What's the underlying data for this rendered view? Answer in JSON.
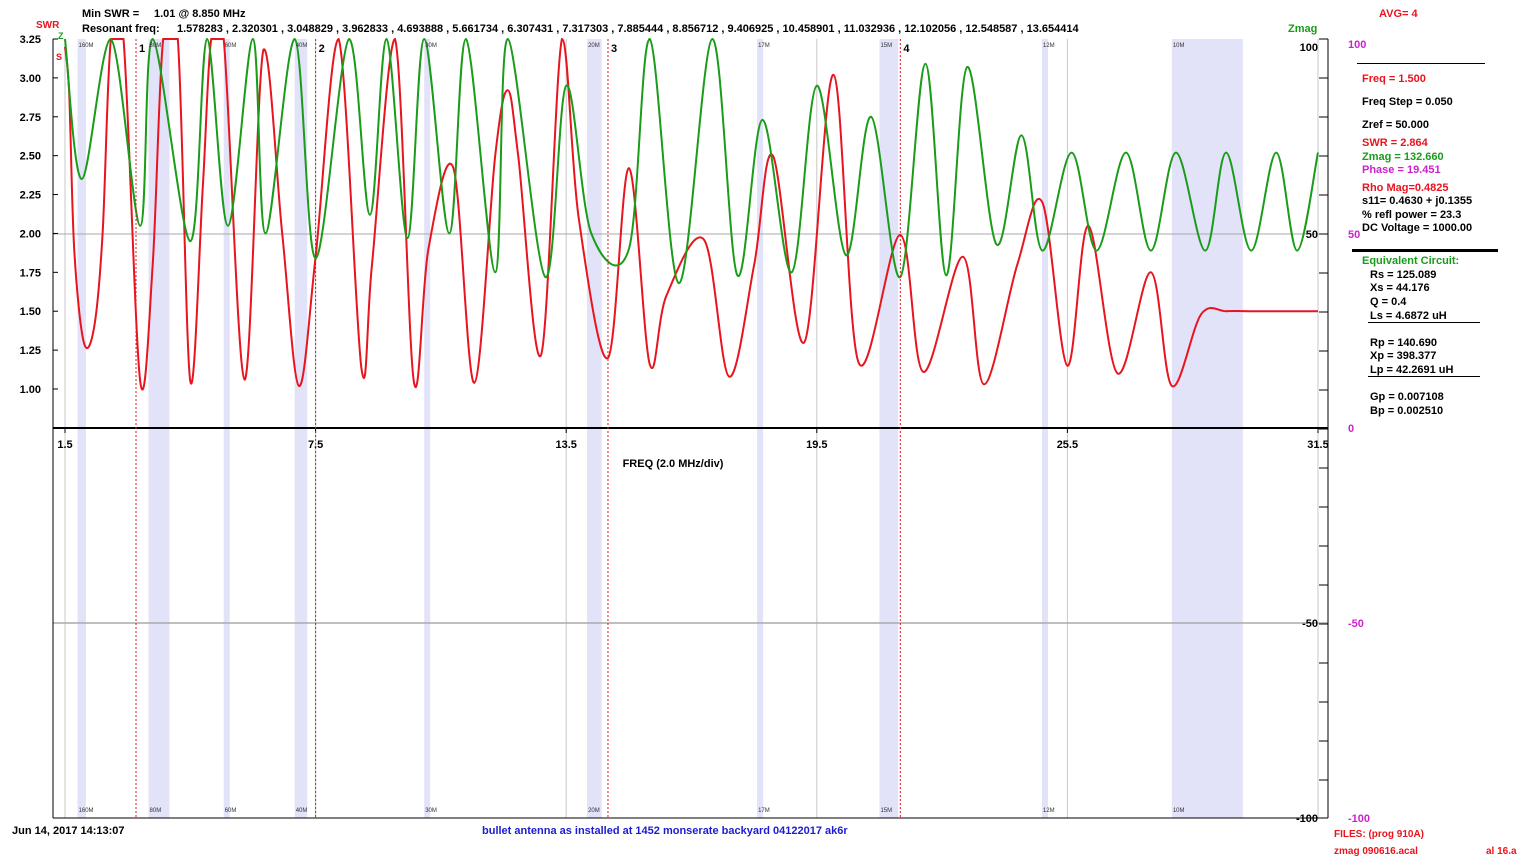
{
  "header": {
    "min_swr_label": "Min SWR =",
    "min_swr_value": "1.01 @  8.850 MHz",
    "resonant_label": "Resonant freq:",
    "resonant_values": "1.578283 , 2.320301 , 3.048829 , 3.962833 , 4.693888 , 5.661734 , 6.307431 , 7.317303 , 7.885444 , 8.856712 , 9.406925 , 10.458901 , 11.032936 , 12.102056 , 12.548587 , 13.654414",
    "avg": "AVG=  4",
    "swr_label": "SWR",
    "z_label": "Z",
    "s_label": "S",
    "zmag_label": "Zmag"
  },
  "panel": {
    "freq": "Freq = 1.500",
    "freq_step": "Freq Step = 0.050",
    "zref": "Zref =   50.000",
    "swr": "SWR =   2.864",
    "zmag": "Zmag =  132.660",
    "phase": "Phase =   19.451",
    "rho": "Rho Mag=0.4825",
    "s11": "s11= 0.4630 + j0.1355",
    "refl": "% refl power = 23.3",
    "dcv": "DC Voltage =  1000.00",
    "eq_title": "Equivalent Circuit:",
    "rs": "Rs =  125.089",
    "xs": "Xs =   44.176",
    "q": "Q =  0.4",
    "ls": "Ls =    4.6872 uH",
    "rp": "Rp =  140.690",
    "xp": "Xp =  398.377",
    "lp": "Lp =   42.2691  uH",
    "gp": "Gp =  0.007108",
    "bp": "Bp =  0.002510"
  },
  "footer": {
    "date": "Jun 14, 2017  14:13:07",
    "description": "bullet antenna as installed at 1452 monserate backyard 04122017 ak6r",
    "files": "FILES:  (prog 910A)",
    "file1": "zmag 090616.acal",
    "file2": "al 16.a"
  },
  "colors": {
    "swr": "#e8141e",
    "zmag": "#1a9c1a",
    "phase": "#cc22cc",
    "band": "#e2e2f8",
    "grid": "#c8c8c8"
  },
  "chart_data": {
    "type": "line",
    "xlabel": "FREQ (2.0 MHz/div)",
    "x_ticks": [
      "1.5",
      "7.5",
      "13.5",
      "19.5",
      "25.5",
      "31.5"
    ],
    "xlim": [
      1.5,
      31.5
    ],
    "swr_ticks": [
      "3.25",
      "3.00",
      "2.75",
      "2.50",
      "2.25",
      "2.00",
      "1.75",
      "1.50",
      "1.25",
      "1.00"
    ],
    "swr_ylim": [
      1.0,
      3.25
    ],
    "zmag_ticks": [
      "100",
      "50"
    ],
    "zmag_neg_ticks": [
      "-50",
      "-100"
    ],
    "phase_ticks": [
      "100",
      "50",
      "0",
      "-50",
      "-100"
    ],
    "markers": [
      {
        "label": "1",
        "freq": 3.2
      },
      {
        "label": "2",
        "freq": 7.5
      },
      {
        "label": "3",
        "freq": 14.5
      },
      {
        "label": "4",
        "freq": 21.5
      }
    ],
    "bands": [
      {
        "label": "160M",
        "from": 1.8,
        "to": 2.0
      },
      {
        "label": "80M",
        "from": 3.5,
        "to": 4.0
      },
      {
        "label": "60M",
        "from": 5.3,
        "to": 5.4
      },
      {
        "label": "40M",
        "from": 7.0,
        "to": 7.3
      },
      {
        "label": "30M",
        "from": 10.1,
        "to": 10.15
      },
      {
        "label": "20M",
        "from": 14.0,
        "to": 14.35
      },
      {
        "label": "17M",
        "from": 18.07,
        "to": 18.17
      },
      {
        "label": "15M",
        "from": 21.0,
        "to": 21.45
      },
      {
        "label": "12M",
        "from": 24.89,
        "to": 24.99
      },
      {
        "label": "10M",
        "from": 28.0,
        "to": 29.7
      }
    ],
    "series": [
      {
        "name": "SWR",
        "x": [
          1.5,
          1.6,
          1.72,
          1.95,
          2.2,
          2.4,
          2.6,
          2.9,
          3.3,
          3.6,
          3.85,
          4.2,
          4.5,
          4.8,
          5.0,
          5.3,
          5.8,
          6.25,
          6.7,
          7.1,
          7.5,
          8.05,
          8.6,
          8.85,
          9.4,
          9.85,
          10.2,
          10.8,
          11.3,
          11.8,
          12.1,
          12.35,
          12.9,
          13.4,
          13.8,
          14.5,
          15.0,
          15.5,
          15.9,
          16.8,
          17.4,
          18.0,
          18.45,
          19.2,
          19.9,
          20.5,
          21.5,
          22.05,
          23.0,
          23.5,
          24.3,
          24.9,
          25.5,
          26.0,
          26.7,
          27.5,
          28.0,
          28.7,
          29.3,
          29.9,
          30.5,
          31.0,
          31.5
        ],
        "y": [
          3.2,
          2.9,
          1.9,
          1.3,
          1.4,
          2.0,
          3.25,
          3.25,
          1.05,
          1.8,
          3.25,
          3.25,
          1.05,
          2.3,
          3.25,
          3.25,
          1.06,
          3.18,
          2.0,
          1.02,
          1.85,
          3.25,
          1.13,
          1.8,
          3.25,
          1.05,
          1.9,
          2.42,
          1.04,
          2.5,
          2.92,
          2.5,
          1.22,
          3.25,
          2.1,
          1.2,
          2.42,
          1.16,
          1.6,
          1.96,
          1.08,
          1.8,
          2.5,
          1.3,
          3.02,
          1.17,
          1.99,
          1.11,
          1.85,
          1.03,
          1.8,
          2.2,
          1.15,
          2.05,
          1.1,
          1.75,
          1.02,
          1.48,
          1.5,
          1.5,
          1.5,
          1.5,
          1.5
        ]
      },
      {
        "name": "Zmag",
        "x": [
          1.5,
          1.9,
          2.6,
          3.3,
          3.6,
          4.5,
          4.9,
          5.4,
          6.0,
          6.3,
          7.0,
          7.5,
          8.3,
          8.8,
          9.2,
          9.7,
          10.1,
          10.7,
          11.1,
          11.8,
          12.1,
          13.0,
          13.5,
          14.1,
          15.0,
          15.5,
          16.2,
          17.0,
          17.6,
          18.2,
          18.9,
          19.5,
          20.2,
          20.8,
          21.5,
          22.1,
          22.6,
          23.1,
          23.8,
          24.4,
          24.9,
          25.6,
          26.2,
          26.9,
          27.5,
          28.1,
          28.8,
          29.3,
          29.9,
          30.5,
          31.0,
          31.5
        ],
        "y": [
          3.25,
          2.35,
          3.25,
          2.05,
          3.25,
          1.95,
          3.25,
          2.05,
          3.25,
          2.0,
          3.25,
          1.84,
          3.25,
          2.12,
          3.25,
          1.97,
          3.25,
          2.0,
          3.25,
          1.75,
          3.25,
          1.72,
          2.95,
          2.0,
          1.9,
          3.25,
          1.68,
          3.25,
          1.73,
          2.73,
          1.75,
          2.95,
          1.86,
          2.75,
          1.72,
          3.09,
          1.73,
          3.07,
          1.93,
          2.63,
          1.89,
          2.52,
          1.89,
          2.52,
          1.89,
          2.52,
          1.89,
          2.52,
          1.89,
          2.52,
          1.89,
          2.52
        ]
      }
    ]
  }
}
